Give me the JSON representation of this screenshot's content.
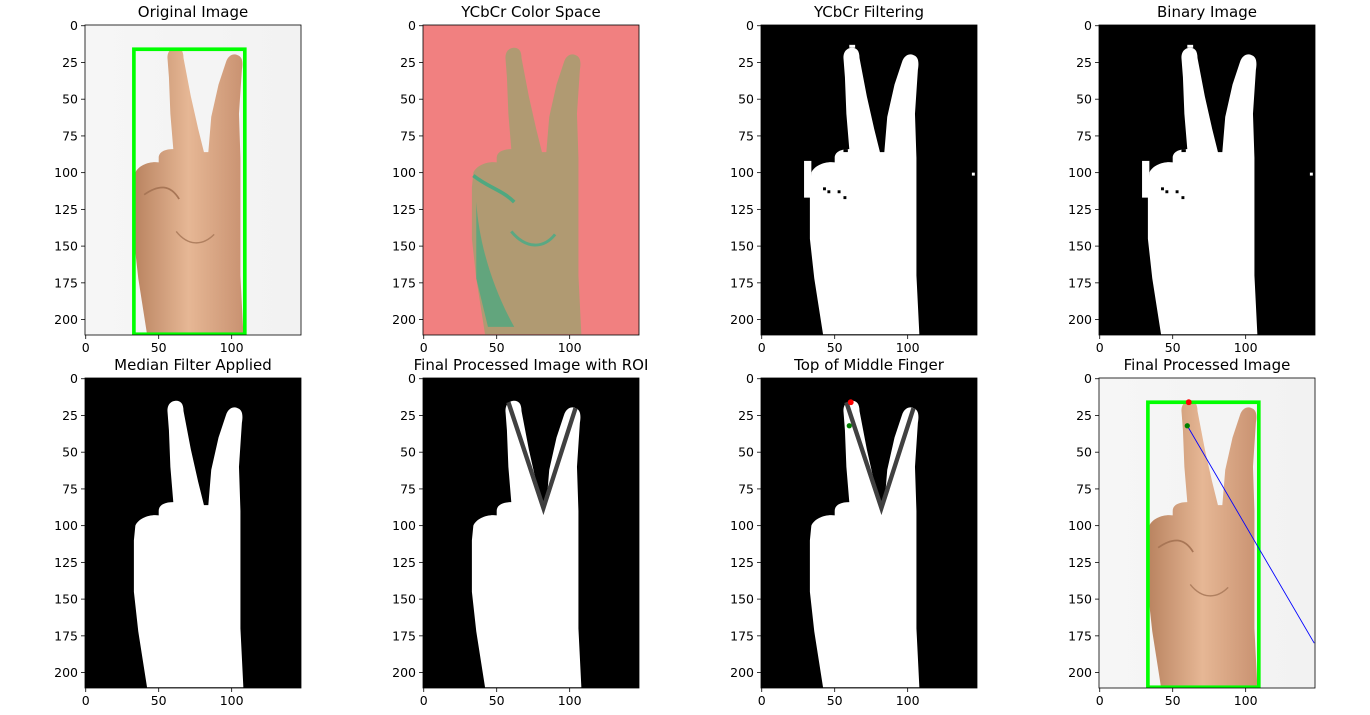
{
  "panels": [
    {
      "id": "original",
      "title": "Original Image",
      "kind": "photo",
      "roi_box": true
    },
    {
      "id": "ycbcr",
      "title": "YCbCr Color Space",
      "kind": "ycbcr",
      "roi_box": false
    },
    {
      "id": "ycbcr-filter",
      "title": "YCbCr Filtering",
      "kind": "mask-noisy",
      "roi_box": false
    },
    {
      "id": "binary",
      "title": "Binary Image",
      "kind": "mask-noisy",
      "roi_box": false
    },
    {
      "id": "median",
      "title": "Median Filter Applied",
      "kind": "mask",
      "roi_box": false
    },
    {
      "id": "roi",
      "title": "Final Processed Image with ROI",
      "kind": "mask-lines",
      "roi_box": false
    },
    {
      "id": "top-finger",
      "title": "Top of Middle Finger",
      "kind": "mask-lines-points",
      "roi_box": false
    },
    {
      "id": "final",
      "title": "Final Processed Image",
      "kind": "photo-final",
      "roi_box": true
    }
  ],
  "axes": {
    "x_ticks": [
      0,
      50,
      100
    ],
    "y_ticks": [
      0,
      25,
      50,
      75,
      100,
      125,
      150,
      175,
      200
    ],
    "x_range": [
      -0.5,
      147.5
    ],
    "y_range": [
      210.5,
      -0.5
    ]
  },
  "annotations": {
    "roi_box": {
      "x0": 33,
      "y0": 16,
      "x1": 109,
      "y1": 210
    },
    "top_point": {
      "x": 61,
      "y": 16
    },
    "secondary_point": {
      "x": 60,
      "y": 32
    },
    "blue_line": {
      "x0": 60,
      "y0": 32,
      "x1": 147,
      "y1": 180
    },
    "v_lines": {
      "left_top": {
        "x": 58,
        "y": 16
      },
      "bottom": {
        "x": 82,
        "y": 88
      },
      "right_top": {
        "x": 104,
        "y": 20
      }
    }
  },
  "colors": {
    "roi_box": "#00ff00",
    "top_point": "#ff0000",
    "secondary_point": "#008000",
    "blue_line": "#0000ff",
    "v_lines": "#404040",
    "ycbcr_bg": "#f18080",
    "ycbcr_hand": "#b09a72",
    "ycbcr_shadow": "#4fa880"
  }
}
